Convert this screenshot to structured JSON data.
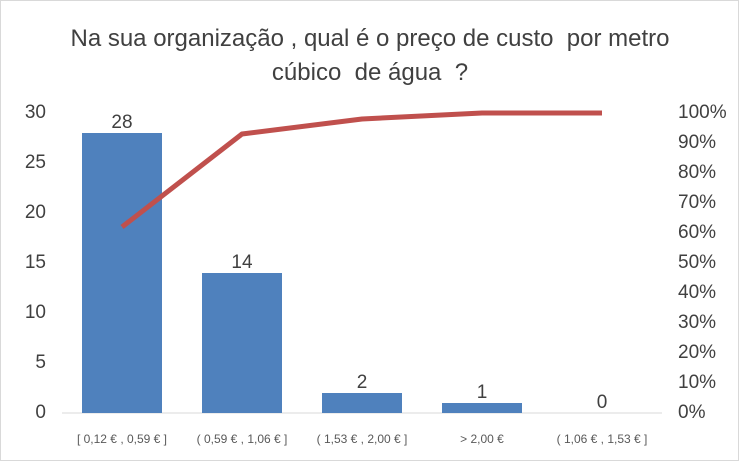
{
  "chart_data": {
    "type": "pareto",
    "title": "Na sua organização , qual é o preço de custo  por metro cúbico  de água  ?",
    "categories": [
      "[ 0,12 € ,  0,59 € ]",
      "( 0,59 € ,  1,06 € ]",
      "( 1,53 € ,  2,00 € ]",
      "> 2,00 €",
      "( 1,06 € ,  1,53 € ]"
    ],
    "series": [
      {
        "type": "bar",
        "color": "#4f81bd",
        "values": [
          28,
          14,
          2,
          1,
          0
        ]
      },
      {
        "type": "line",
        "axis": "y2",
        "color": "#c0504d",
        "values": [
          62,
          93,
          98,
          100,
          100
        ]
      }
    ],
    "ylim": [
      0,
      30
    ],
    "yticks": [
      0,
      5,
      10,
      15,
      20,
      25,
      30
    ],
    "y2lim": [
      0,
      100
    ],
    "y2ticks": [
      {
        "value": 0,
        "label": "0%"
      },
      {
        "value": 10,
        "label": "10%"
      },
      {
        "value": 20,
        "label": "20%"
      },
      {
        "value": 30,
        "label": "30%"
      },
      {
        "value": 40,
        "label": "40%"
      },
      {
        "value": 50,
        "label": "50%"
      },
      {
        "value": 60,
        "label": "60%"
      },
      {
        "value": 70,
        "label": "70%"
      },
      {
        "value": 80,
        "label": "80%"
      },
      {
        "value": 90,
        "label": "90%"
      },
      {
        "value": 100,
        "label": "100%"
      }
    ],
    "grid": false
  }
}
